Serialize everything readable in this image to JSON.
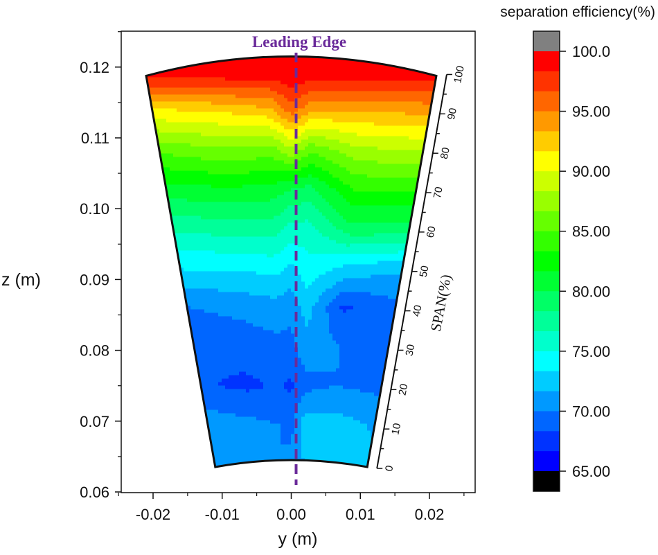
{
  "chart_data": {
    "type": "heatmap",
    "subtype": "filled contour (annular sector)",
    "xlabel": "y (m)",
    "ylabel": "z (m)",
    "xlim": [
      -0.025,
      0.025
    ],
    "ylim": [
      0.06,
      0.125
    ],
    "x_ticks": [
      {
        "value": -0.02,
        "label": "-0.02"
      },
      {
        "value": -0.01,
        "label": "-0.01"
      },
      {
        "value": 0.0,
        "label": "0.00"
      },
      {
        "value": 0.01,
        "label": "0.01"
      },
      {
        "value": 0.02,
        "label": "0.02"
      }
    ],
    "y_ticks": [
      {
        "value": 0.06,
        "label": "0.06"
      },
      {
        "value": 0.07,
        "label": "0.07"
      },
      {
        "value": 0.08,
        "label": "0.08"
      },
      {
        "value": 0.09,
        "label": "0.09"
      },
      {
        "value": 0.1,
        "label": "0.10"
      },
      {
        "value": 0.11,
        "label": "0.11"
      },
      {
        "value": 0.12,
        "label": "0.12"
      }
    ],
    "annotation": {
      "text": "Leading Edge",
      "y_position_m": 0.0,
      "color": "#6a2a9a",
      "style": "dashed vertical line"
    },
    "span_axis": {
      "title": "SPAN(%)",
      "ticks": [
        "0",
        "10",
        "20",
        "30",
        "40",
        "50",
        "60",
        "70",
        "80",
        "90",
        "100"
      ],
      "range": [
        0,
        100
      ]
    },
    "sector": {
      "hub_z_m": 0.0645,
      "tip_z_m": 0.1215,
      "hub_y_range_m": [
        -0.011,
        0.011
      ],
      "tip_y_range_m": [
        -0.021,
        0.021
      ]
    },
    "colorbar": {
      "title": "separation efficiency(%)",
      "min": 65.0,
      "max": 100.0,
      "ticks": [
        {
          "value": 100.0,
          "label": "100.0"
        },
        {
          "value": 95.0,
          "label": "95.00"
        },
        {
          "value": 90.0,
          "label": "90.00"
        },
        {
          "value": 85.0,
          "label": "85.00"
        },
        {
          "value": 80.0,
          "label": "80.00"
        },
        {
          "value": 75.0,
          "label": "75.00"
        },
        {
          "value": 70.0,
          "label": "70.00"
        },
        {
          "value": 65.0,
          "label": "65.00"
        }
      ],
      "over_color": "#808080",
      "under_color": "#000000",
      "levels": [
        "#ff0000",
        "#ff3300",
        "#ff6600",
        "#ff9900",
        "#ffcc00",
        "#ffff00",
        "#ccff00",
        "#99ff00",
        "#66ff00",
        "#33ff00",
        "#00ff00",
        "#00ff33",
        "#00ff66",
        "#00ff99",
        "#00ffcc",
        "#00ffff",
        "#00ccff",
        "#0099ff",
        "#0066ff",
        "#0033ff",
        "#0000ff"
      ]
    },
    "contour_profile": {
      "description": "Separation efficiency (%) vs span (%) along sampled pitch positions y (m); contours are near-horizontal with a V-shaped dip just right of the leading edge",
      "y_samples_m": [
        -0.02,
        -0.01,
        -0.003,
        0.0,
        0.003,
        0.01,
        0.02
      ],
      "span_samples_pct": [
        0,
        10,
        20,
        30,
        40,
        50,
        60,
        70,
        80,
        90,
        100
      ],
      "values": [
        [
          71.5,
          71.0,
          70.0,
          70.5,
          71.5,
          72.5,
          72.0
        ],
        [
          71.0,
          70.5,
          70.0,
          69.5,
          72.5,
          72.5,
          71.5
        ],
        [
          68.5,
          68.0,
          68.5,
          68.0,
          69.5,
          70.0,
          69.5
        ],
        [
          68.5,
          69.0,
          69.5,
          69.5,
          71.0,
          70.0,
          69.0
        ],
        [
          70.0,
          70.5,
          71.0,
          70.5,
          72.5,
          68.0,
          69.5
        ],
        [
          73.5,
          73.5,
          74.0,
          73.0,
          74.5,
          73.0,
          72.0
        ],
        [
          77.0,
          77.5,
          77.5,
          76.0,
          76.0,
          79.5,
          79.5
        ],
        [
          81.0,
          81.5,
          81.0,
          80.0,
          79.5,
          83.5,
          83.5
        ],
        [
          85.5,
          86.5,
          86.0,
          88.0,
          85.5,
          88.0,
          88.5
        ],
        [
          91.5,
          92.0,
          93.0,
          96.0,
          93.5,
          93.5,
          94.0
        ],
        [
          100.0,
          100.0,
          100.0,
          100.0,
          100.0,
          100.0,
          100.0
        ]
      ]
    }
  }
}
